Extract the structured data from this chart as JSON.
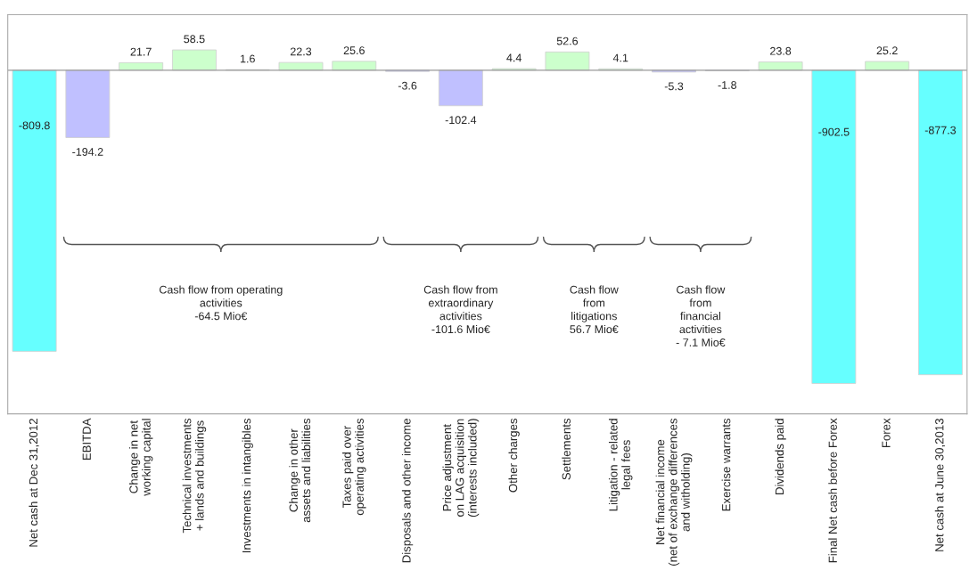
{
  "chart_data": {
    "type": "bar",
    "categories": [
      "Net cash at Dec 31,2012",
      "EBITDA",
      "Change in net\nworking capital",
      "Technical investments\n+ lands and buildings",
      "Investments in intangibles",
      "Change in other\nassets and liabilities",
      "Taxes paid over\noperating activities",
      "Disposals and other income",
      "Price adjustment\non LAG acquisition\n(interests included)",
      "Other charges",
      "Settlements",
      "Litigation - related\nlegal fees",
      "Net financial income\n(net of exchange differences\nand witholding)",
      "Exercise warrants",
      "Dividends paid",
      "Final Net cash before Forex",
      "Forex",
      "Net cash at June 30,2013"
    ],
    "values": [
      -809.8,
      -194.2,
      21.7,
      58.5,
      1.6,
      22.3,
      25.6,
      -3.6,
      -102.4,
      4.4,
      52.6,
      4.1,
      -5.3,
      -1.8,
      23.8,
      -902.5,
      25.2,
      -877.3
    ],
    "colors": [
      "#66ffff",
      "#c0c0ff",
      "#ccffcc",
      "#ccffcc",
      "#ccffcc",
      "#ccffcc",
      "#ccffcc",
      "#c0c0ff",
      "#c0c0ff",
      "#ccffcc",
      "#ccffcc",
      "#ccffcc",
      "#c0c0ff",
      "#c0c0ff",
      "#ccffcc",
      "#66ffff",
      "#ccffcc",
      "#66ffff"
    ],
    "data_labels": true,
    "ylim": [
      -990,
      160
    ],
    "tick_labels": "x",
    "grid": false,
    "annotations": [
      "Cash flow from operating\nactivities\n-64.5 Mio€",
      "Cash flow from\nextraordinary\nactivities\n-101.6 Mio€",
      "Cash flow\nfrom\nlitigations\n56.7 Mio€",
      "Cash flow\nfrom\nfinancial\nactivities\n- 7.1 Mio€"
    ]
  }
}
